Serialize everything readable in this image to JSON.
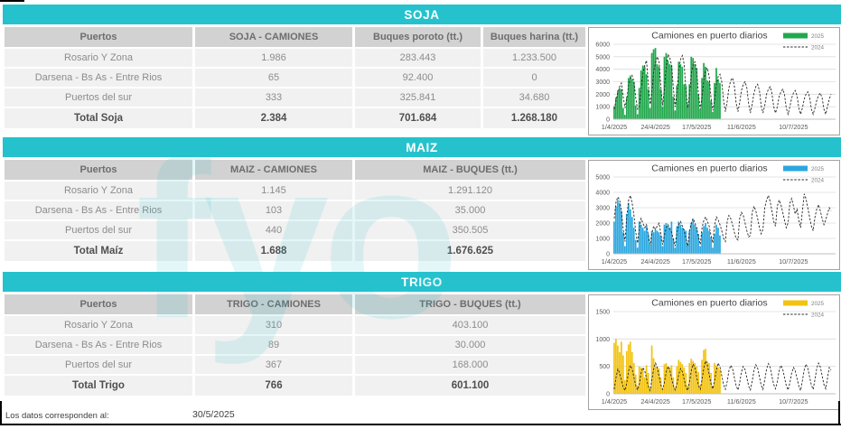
{
  "watermark": "fyo",
  "colors": {
    "band": "#25C2CD",
    "header_bg": "#D2D2D2",
    "row_bg": "#F1F1F1",
    "soja_bar": "#21A84C",
    "maiz_bar": "#2BA7DF",
    "trigo_bar": "#F3C312",
    "line_2024": "#262626"
  },
  "footer": {
    "label": "Los datos corresponden al:",
    "value": "30/5/2025"
  },
  "sections": [
    {
      "title": "SOJA",
      "headers": [
        "Puertos",
        "SOJA - CAMIONES",
        "Buques poroto (tt.)",
        "Buques harina (tt.)"
      ],
      "rows": [
        [
          "Rosario Y Zona",
          "1.986",
          "283.443",
          "1.233.500"
        ],
        [
          "Darsena - Bs As - Entre Rios",
          "65",
          "92.400",
          "0"
        ],
        [
          "Puertos del sur",
          "333",
          "325.841",
          "34.680"
        ]
      ],
      "total": [
        "Total Soja",
        "2.384",
        "701.684",
        "1.268.180"
      ]
    },
    {
      "title": "MAIZ",
      "headers": [
        "Puertos",
        "MAIZ - CAMIONES",
        "MAIZ - BUQUES (tt.)"
      ],
      "rows": [
        [
          "Rosario Y Zona",
          "1.145",
          "1.291.120"
        ],
        [
          "Darsena - Bs As - Entre Rios",
          "103",
          "35.000"
        ],
        [
          "Puertos del sur",
          "440",
          "350.505"
        ]
      ],
      "total": [
        "Total Maíz",
        "1.688",
        "1.676.625"
      ]
    },
    {
      "title": "TRIGO",
      "headers": [
        "Puertos",
        "TRIGO - CAMIONES",
        "TRIGO - BUQUES (tt.)"
      ],
      "rows": [
        [
          "Rosario Y Zona",
          "310",
          "403.100"
        ],
        [
          "Darsena - Bs As - Entre Rios",
          "89",
          "30.000"
        ],
        [
          "Puertos del sur",
          "367",
          "168.000"
        ]
      ],
      "total": [
        "Total Trigo",
        "766",
        "601.100"
      ]
    }
  ],
  "chart_data": [
    {
      "type": "bar",
      "crop": "SOJA",
      "title": "Camiones en puerto diarios",
      "legend": [
        "2025",
        "2024"
      ],
      "bar_color": "#21A84C",
      "line_color": "#262626",
      "ylim": [
        0,
        6000
      ],
      "yticks": [
        0,
        1000,
        2000,
        3000,
        4000,
        5000,
        6000
      ],
      "xticks": [
        "1/4/2025",
        "24/4/2025",
        "17/5/2025",
        "11/6/2025",
        "10/7/2025"
      ],
      "xtick_days": [
        0,
        23,
        46,
        71,
        100
      ],
      "total_days": 122,
      "grid": true,
      "legend_position": "top-right",
      "series": [
        {
          "name": "2025",
          "type": "bar",
          "values": [
            1050,
            1750,
            2300,
            2500,
            2400,
            900,
            350,
            1800,
            3300,
            3500,
            3200,
            3000,
            1100,
            400,
            2500,
            3900,
            4300,
            4200,
            3600,
            2400,
            900,
            5300,
            5600,
            5700,
            4400,
            4200,
            2400,
            1000,
            5000,
            5300,
            4700,
            4400,
            4300,
            1800,
            700,
            2700,
            4600,
            4400,
            4200,
            2800,
            2700,
            1200,
            2800,
            5000,
            4900,
            4400,
            4100,
            2000,
            800,
            3300,
            4500,
            4200,
            3100,
            3000,
            1500,
            600,
            2900,
            4100,
            3200,
            2900
          ]
        },
        {
          "name": "2024",
          "type": "line",
          "values": [
            800,
            1500,
            2100,
            2600,
            2900,
            1800,
            900,
            1600,
            2700,
            3200,
            3500,
            3000,
            1700,
            800,
            1000,
            2400,
            3600,
            4300,
            4700,
            2800,
            1200,
            2000,
            3800,
            4500,
            5000,
            4600,
            2600,
            1100,
            2400,
            4200,
            5200,
            4900,
            4300,
            2400,
            1000,
            2200,
            3900,
            4800,
            5100,
            4400,
            2300,
            900,
            2000,
            3600,
            4400,
            4600,
            3900,
            2000,
            800,
            1800,
            3200,
            3900,
            4100,
            3400,
            1700,
            700,
            1500,
            2800,
            3400,
            3600,
            3000,
            1500,
            600,
            1400,
            2500,
            3100,
            3300,
            2700,
            1300,
            600,
            1300,
            2300,
            2800,
            3000,
            2500,
            1200,
            500,
            1200,
            2100,
            2600,
            2800,
            2300,
            1100,
            500,
            1100,
            2000,
            2400,
            2600,
            2100,
            1000,
            500,
            1000,
            1800,
            2200,
            2400,
            2000,
            900,
            400,
            1000,
            1700,
            2100,
            2300,
            1900,
            900,
            400,
            900,
            1600,
            2000,
            2200,
            1800,
            800,
            400,
            900,
            1500,
            1900,
            2100,
            1700,
            800,
            400,
            1000,
            1600,
            2000
          ]
        }
      ]
    },
    {
      "type": "bar",
      "crop": "MAIZ",
      "title": "Camiones en puerto diarios",
      "legend": [
        "2025",
        "2024"
      ],
      "bar_color": "#2BA7DF",
      "line_color": "#262626",
      "ylim": [
        0,
        5000
      ],
      "yticks": [
        0,
        1000,
        2000,
        3000,
        4000,
        5000
      ],
      "xticks": [
        "1/4/2025",
        "24/4/2025",
        "17/5/2025",
        "11/6/2025",
        "10/7/2025"
      ],
      "xtick_days": [
        0,
        23,
        46,
        71,
        100
      ],
      "total_days": 122,
      "grid": true,
      "legend_position": "top-right",
      "series": [
        {
          "name": "2025",
          "type": "bar",
          "values": [
            2100,
            3100,
            3500,
            3300,
            2800,
            1400,
            500,
            2600,
            3300,
            2900,
            2400,
            1700,
            900,
            400,
            2100,
            1900,
            1700,
            1500,
            1800,
            1300,
            600,
            1500,
            1400,
            1600,
            1500,
            1400,
            1200,
            500,
            1900,
            2000,
            1800,
            1700,
            2100,
            1000,
            400,
            1800,
            2100,
            1900,
            1700,
            1600,
            1500,
            700,
            1500,
            2000,
            2200,
            1900,
            1700,
            1300,
            500,
            1400,
            1800,
            2000,
            1700,
            1500,
            1100,
            400,
            1300,
            1900,
            1700,
            1200
          ]
        },
        {
          "name": "2024",
          "type": "line",
          "values": [
            2300,
            3400,
            3700,
            3500,
            2800,
            1600,
            800,
            2400,
            3500,
            3800,
            3300,
            2500,
            1400,
            700,
            1700,
            2300,
            2000,
            1700,
            1900,
            1200,
            600,
            1300,
            1800,
            1600,
            1800,
            2000,
            1300,
            600,
            1200,
            1700,
            1900,
            1600,
            1400,
            900,
            500,
            1400,
            1900,
            2100,
            1800,
            1500,
            1000,
            500,
            1500,
            2000,
            2300,
            2000,
            1700,
            1100,
            600,
            1700,
            2200,
            2400,
            2100,
            1800,
            1200,
            700,
            1900,
            2400,
            2200,
            1900,
            1500,
            1000,
            800,
            2100,
            2500,
            2300,
            1900,
            1400,
            1000,
            900,
            2300,
            2700,
            2500,
            2000,
            1500,
            1100,
            1200,
            2700,
            3100,
            2800,
            2300,
            1700,
            1300,
            1600,
            3000,
            3500,
            3800,
            3400,
            2800,
            2100,
            1800,
            3100,
            3500,
            3200,
            2700,
            2200,
            1700,
            2000,
            3300,
            3600,
            3100,
            2600,
            2900,
            2200,
            1700,
            2800,
            3900,
            3600,
            3000,
            2400,
            1800,
            1500,
            2400,
            2900,
            3200,
            2800,
            2300,
            1900,
            2200,
            2600,
            3000,
            2800
          ]
        }
      ]
    },
    {
      "type": "bar",
      "crop": "TRIGO",
      "title": "Camiones en puerto diarios",
      "legend": [
        "2025",
        "2024"
      ],
      "bar_color": "#F3C312",
      "line_color": "#262626",
      "ylim": [
        0,
        1500
      ],
      "yticks": [
        0,
        500,
        1000,
        1500
      ],
      "xticks": [
        "1/4/2025",
        "24/4/2025",
        "17/5/2025",
        "11/6/2025",
        "10/7/2025"
      ],
      "xtick_days": [
        0,
        23,
        46,
        71,
        100
      ],
      "total_days": 122,
      "grid": true,
      "legend_position": "top-right",
      "series": [
        {
          "name": "2025",
          "type": "bar",
          "values": [
            930,
            1000,
            880,
            760,
            950,
            700,
            250,
            780,
            900,
            950,
            760,
            560,
            350,
            150,
            500,
            480,
            460,
            300,
            520,
            380,
            120,
            880,
            650,
            500,
            480,
            460,
            300,
            100,
            540,
            560,
            500,
            480,
            520,
            300,
            120,
            500,
            620,
            580,
            540,
            480,
            380,
            150,
            560,
            640,
            600,
            560,
            500,
            400,
            160,
            620,
            800,
            820,
            600,
            560,
            380,
            140,
            560,
            520,
            480,
            440
          ]
        },
        {
          "name": "2024",
          "type": "line",
          "values": [
            80,
            300,
            450,
            380,
            250,
            120,
            60,
            200,
            420,
            520,
            450,
            300,
            150,
            70,
            180,
            380,
            480,
            420,
            280,
            130,
            60,
            250,
            450,
            560,
            480,
            320,
            160,
            80,
            200,
            400,
            500,
            430,
            280,
            140,
            70,
            180,
            360,
            460,
            400,
            260,
            120,
            60,
            220,
            420,
            540,
            470,
            310,
            150,
            80,
            260,
            480,
            600,
            520,
            350,
            180,
            90,
            240,
            440,
            560,
            490,
            330,
            170,
            80,
            220,
            420,
            520,
            460,
            300,
            150,
            70,
            200,
            400,
            500,
            440,
            290,
            140,
            70,
            230,
            430,
            530,
            470,
            310,
            160,
            80,
            250,
            450,
            550,
            480,
            320,
            170,
            90,
            220,
            420,
            520,
            450,
            300,
            150,
            70,
            200,
            380,
            480,
            420,
            280,
            140,
            60,
            240,
            440,
            540,
            470,
            310,
            160,
            80,
            260,
            460,
            560,
            490,
            330,
            170,
            90,
            280,
            480,
            430
          ]
        }
      ]
    }
  ]
}
